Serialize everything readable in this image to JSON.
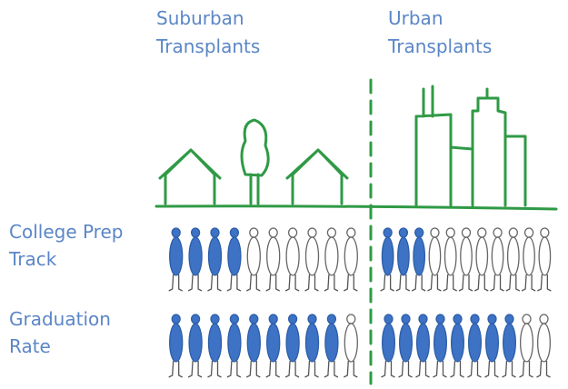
{
  "columns": [
    [
      "Suburban",
      "Transplants"
    ],
    [
      "Urban",
      "Transplants"
    ]
  ],
  "rows": [
    {
      "label": [
        "College Prep",
        "Track"
      ],
      "groups": [
        {
          "filled": 4,
          "total": 10
        },
        {
          "filled": 3,
          "total": 11
        }
      ]
    },
    {
      "label": [
        "Graduation",
        "Rate"
      ],
      "groups": [
        {
          "filled": 9,
          "total": 10
        },
        {
          "filled": 8,
          "total": 10
        }
      ]
    }
  ]
}
